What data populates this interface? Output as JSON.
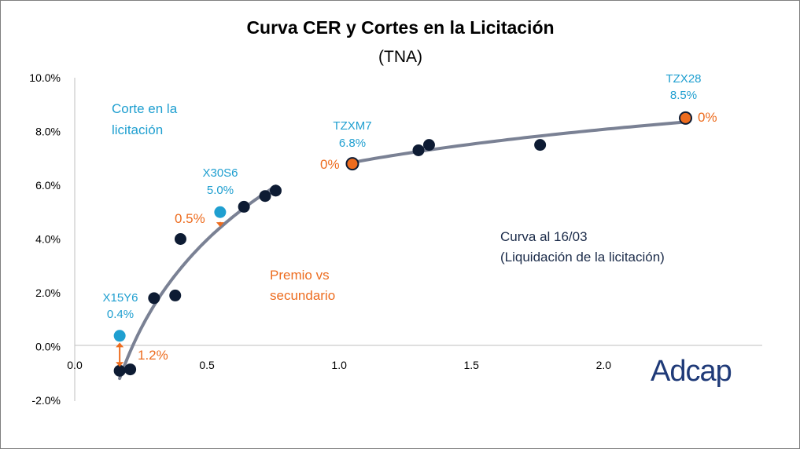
{
  "chart_data": {
    "type": "scatter",
    "title": "Curva CER y Cortes en la Licitación",
    "subtitle": "(TNA)",
    "xlabel": "",
    "ylabel": "",
    "xlim": [
      0,
      2.6
    ],
    "ylim": [
      -2,
      10
    ],
    "x_ticks": [
      "0.0",
      "0.5",
      "1.0",
      "1.5",
      "2.0"
    ],
    "x_tick_values": [
      0,
      0.5,
      1.0,
      1.5,
      2.0
    ],
    "y_ticks": [
      "10.0%",
      "8.0%",
      "6.0%",
      "4.0%",
      "2.0%",
      "0.0%",
      "-2.0%"
    ],
    "y_tick_values": [
      10,
      8,
      6,
      4,
      2,
      0,
      -2
    ],
    "series": [
      {
        "name": "Secundario",
        "color": "#0d1b33",
        "points": [
          {
            "x": 0.17,
            "y": -0.9
          },
          {
            "x": 0.21,
            "y": -0.85
          },
          {
            "x": 0.3,
            "y": 1.8
          },
          {
            "x": 0.38,
            "y": 1.9
          },
          {
            "x": 0.4,
            "y": 4.0
          },
          {
            "x": 0.64,
            "y": 5.2
          },
          {
            "x": 0.72,
            "y": 5.6
          },
          {
            "x": 0.76,
            "y": 5.8
          },
          {
            "x": 1.05,
            "y": 6.8
          },
          {
            "x": 1.3,
            "y": 7.3
          },
          {
            "x": 1.34,
            "y": 7.5
          },
          {
            "x": 1.76,
            "y": 7.5
          },
          {
            "x": 2.31,
            "y": 8.5
          }
        ]
      },
      {
        "name": "Corte en la licitación",
        "points": [
          {
            "x": 0.17,
            "y": 0.4,
            "color": "#1f9fd0"
          },
          {
            "x": 0.55,
            "y": 5.0,
            "color": "#1f9fd0"
          },
          {
            "x": 1.05,
            "y": 6.8,
            "color": "#ed6c1f"
          },
          {
            "x": 2.31,
            "y": 8.5,
            "color": "#ed6c1f"
          }
        ]
      }
    ],
    "curve_segments": [
      {
        "x_from": 0.17,
        "x_to": 0.76
      },
      {
        "x_from": 1.05,
        "x_to": 2.31
      }
    ],
    "curve_color": "#7a8194",
    "bond_labels": [
      {
        "name": "X15Y6",
        "value": "0.4%"
      },
      {
        "name": "X30S6",
        "value": "5.0%"
      },
      {
        "name": "TZXM7",
        "value": "6.8%"
      },
      {
        "name": "TZX28",
        "value": "8.5%"
      }
    ],
    "premium_labels": [
      "1.2%",
      "0.5%",
      "0%",
      "0%"
    ],
    "premium_arrows": [
      {
        "x": 0.17,
        "y_from": 0.15,
        "y_to": -0.75
      },
      {
        "x": 0.55,
        "y_from": 4.75,
        "y_to": 4.45
      }
    ],
    "arrow_color": "#ed6c1f",
    "legend_texts": {
      "corte_line1": "Corte en la",
      "corte_line2": "licitación",
      "premio_line1": "Premio vs",
      "premio_line2": "secundario",
      "curva_line1": "Curva al 16/03",
      "curva_line2": "(Liquidación de la licitación)"
    },
    "grid": false
  },
  "brand": {
    "logo_text": "Adcap"
  },
  "colors": {
    "blue": "#1f9fd0",
    "orange": "#ed6c1f",
    "navy": "#0d1b33",
    "axis": "#bfbfbf"
  }
}
